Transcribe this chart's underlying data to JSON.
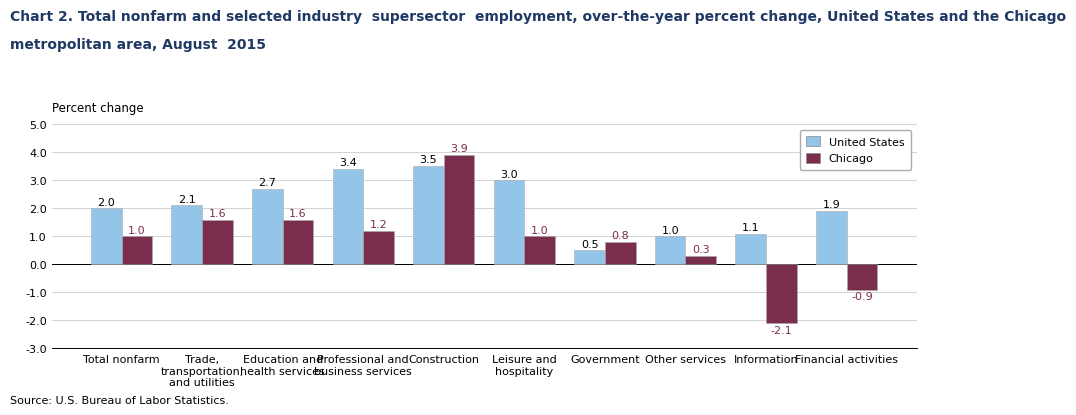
{
  "title_line1": "Chart 2. Total nonfarm and selected industry  supersector  employment, over-the-year percent change, United States and the Chicago",
  "title_line2": "metropolitan area, August  2015",
  "ylabel": "Percent change",
  "source": "Source: U.S. Bureau of Labor Statistics.",
  "categories": [
    "Total nonfarm",
    "Trade,\ntransportation,\nand utilities",
    "Education and\nhealth services",
    "Professional and\nbusiness services",
    "Construction",
    "Leisure and\nhospitality",
    "Government",
    "Other services",
    "Information",
    "Financial activities"
  ],
  "us_values": [
    2.0,
    2.1,
    2.7,
    3.4,
    3.5,
    3.0,
    0.5,
    1.0,
    1.1,
    1.9
  ],
  "chicago_values": [
    1.0,
    1.6,
    1.6,
    1.2,
    3.9,
    1.0,
    0.8,
    0.3,
    -2.1,
    -0.9
  ],
  "us_color": "#92C5E8",
  "chicago_color": "#7B2D4E",
  "ylim": [
    -3.0,
    5.0
  ],
  "yticks": [
    -3.0,
    -2.0,
    -1.0,
    0.0,
    1.0,
    2.0,
    3.0,
    4.0,
    5.0
  ],
  "bar_width": 0.38,
  "legend_labels": [
    "United States",
    "Chicago"
  ],
  "title_fontsize": 10,
  "ylabel_fontsize": 8.5,
  "tick_fontsize": 8,
  "label_fontsize": 8,
  "source_fontsize": 8
}
